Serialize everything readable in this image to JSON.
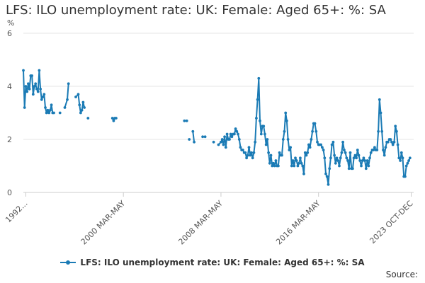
{
  "chart_data": {
    "type": "line",
    "title": "LFS: ILO unemployment rate: UK: Female: Aged 65+: %: SA",
    "ylabel": "%",
    "ylim": [
      0,
      6
    ],
    "yticks": [
      0,
      2,
      4,
      6
    ],
    "xlim": [
      1992.0,
      2024.0
    ],
    "xticks": [
      {
        "x": 1992.2,
        "label": "1992..."
      },
      {
        "x": 2000.2,
        "label": "2000 MAR-MAY"
      },
      {
        "x": 2008.2,
        "label": "2008 MAR-MAY"
      },
      {
        "x": 2016.2,
        "label": "2016 MAR-MAY"
      },
      {
        "x": 2023.8,
        "label": "2023 OCT-DEC"
      }
    ],
    "grid": true,
    "legend_position": "bottom",
    "color": "#1b7bb5",
    "series": [
      {
        "name": "LFS: ILO unemployment rate: UK: Female: Aged 65+: %: SA",
        "segments": [
          [
            [
              1992.0,
              4.6
            ],
            [
              1992.1,
              3.2
            ],
            [
              1992.2,
              4.0
            ],
            [
              1992.3,
              3.8
            ],
            [
              1992.4,
              4.1
            ],
            [
              1992.5,
              3.9
            ],
            [
              1992.6,
              4.4
            ],
            [
              1992.7,
              4.4
            ],
            [
              1992.8,
              3.7
            ],
            [
              1992.9,
              4.0
            ],
            [
              1993.0,
              4.1
            ],
            [
              1993.1,
              3.9
            ],
            [
              1993.2,
              3.8
            ],
            [
              1993.3,
              4.6
            ],
            [
              1993.4,
              3.9
            ],
            [
              1993.5,
              3.5
            ],
            [
              1993.6,
              3.6
            ],
            [
              1993.7,
              3.7
            ],
            [
              1993.8,
              3.2
            ],
            [
              1993.9,
              3.0
            ],
            [
              1994.0,
              3.1
            ],
            [
              1994.1,
              3.0
            ],
            [
              1994.2,
              3.1
            ],
            [
              1994.3,
              3.3
            ],
            [
              1994.4,
              3.0
            ],
            [
              1994.5,
              3.0
            ]
          ],
          [
            [
              1995.0,
              3.0
            ]
          ],
          [
            [
              1995.4,
              3.2
            ],
            [
              1995.6,
              3.5
            ],
            [
              1995.7,
              4.1
            ]
          ],
          [
            [
              1996.3,
              3.6
            ],
            [
              1996.5,
              3.7
            ],
            [
              1996.6,
              3.3
            ],
            [
              1996.7,
              3.0
            ],
            [
              1996.8,
              3.1
            ],
            [
              1996.9,
              3.4
            ],
            [
              1997.0,
              3.2
            ]
          ],
          [
            [
              1997.3,
              2.8
            ]
          ],
          [
            [
              1999.3,
              2.8
            ],
            [
              1999.4,
              2.7
            ],
            [
              1999.5,
              2.8
            ],
            [
              1999.6,
              2.8
            ]
          ],
          [
            [
              2005.2,
              2.7
            ],
            [
              2005.4,
              2.7
            ]
          ],
          [
            [
              2005.6,
              2.0
            ]
          ],
          [
            [
              2005.9,
              2.3
            ],
            [
              2006.0,
              1.9
            ]
          ],
          [
            [
              2006.7,
              2.1
            ],
            [
              2006.9,
              2.1
            ]
          ],
          [
            [
              2007.6,
              1.9
            ]
          ],
          [
            [
              2008.0,
              1.8
            ],
            [
              2008.2,
              1.9
            ],
            [
              2008.3,
              2.0
            ],
            [
              2008.4,
              1.8
            ],
            [
              2008.5,
              2.1
            ],
            [
              2008.6,
              1.7
            ],
            [
              2008.7,
              2.2
            ],
            [
              2008.8,
              2.0
            ],
            [
              2008.9,
              2.0
            ],
            [
              2009.0,
              2.2
            ],
            [
              2009.1,
              2.1
            ],
            [
              2009.2,
              2.2
            ],
            [
              2009.3,
              2.2
            ],
            [
              2009.4,
              2.4
            ],
            [
              2009.5,
              2.3
            ],
            [
              2009.6,
              2.2
            ],
            [
              2009.7,
              2.0
            ],
            [
              2009.8,
              1.7
            ],
            [
              2009.9,
              1.6
            ],
            [
              2010.0,
              1.6
            ],
            [
              2010.1,
              1.5
            ],
            [
              2010.2,
              1.5
            ],
            [
              2010.3,
              1.3
            ],
            [
              2010.4,
              1.4
            ],
            [
              2010.5,
              1.7
            ],
            [
              2010.6,
              1.4
            ],
            [
              2010.7,
              1.5
            ],
            [
              2010.8,
              1.3
            ],
            [
              2010.9,
              1.5
            ],
            [
              2011.0,
              1.9
            ],
            [
              2011.1,
              2.8
            ],
            [
              2011.2,
              3.5
            ],
            [
              2011.3,
              4.3
            ],
            [
              2011.4,
              2.7
            ],
            [
              2011.5,
              2.2
            ],
            [
              2011.6,
              2.5
            ],
            [
              2011.7,
              2.5
            ],
            [
              2011.8,
              2.2
            ],
            [
              2011.9,
              1.8
            ],
            [
              2012.0,
              2.0
            ],
            [
              2012.1,
              1.5
            ],
            [
              2012.2,
              1.1
            ],
            [
              2012.3,
              1.4
            ],
            [
              2012.4,
              1.0
            ],
            [
              2012.5,
              1.1
            ],
            [
              2012.6,
              1.0
            ],
            [
              2012.7,
              1.2
            ],
            [
              2012.8,
              1.0
            ],
            [
              2012.9,
              1.0
            ],
            [
              2013.0,
              1.5
            ],
            [
              2013.1,
              1.4
            ],
            [
              2013.2,
              1.4
            ],
            [
              2013.3,
              2.0
            ],
            [
              2013.4,
              2.3
            ],
            [
              2013.5,
              3.0
            ],
            [
              2013.6,
              2.7
            ],
            [
              2013.7,
              2.0
            ],
            [
              2013.8,
              1.6
            ],
            [
              2013.9,
              1.7
            ],
            [
              2014.0,
              1.0
            ],
            [
              2014.1,
              1.2
            ],
            [
              2014.2,
              1.0
            ],
            [
              2014.3,
              1.3
            ],
            [
              2014.4,
              1.2
            ],
            [
              2014.5,
              1.0
            ],
            [
              2014.6,
              1.1
            ],
            [
              2014.7,
              1.3
            ],
            [
              2014.8,
              1.1
            ],
            [
              2014.9,
              1.0
            ],
            [
              2015.0,
              0.7
            ],
            [
              2015.1,
              1.5
            ],
            [
              2015.2,
              1.4
            ],
            [
              2015.3,
              1.5
            ],
            [
              2015.4,
              1.8
            ],
            [
              2015.5,
              1.7
            ],
            [
              2015.6,
              2.0
            ],
            [
              2015.7,
              2.3
            ],
            [
              2015.8,
              2.6
            ],
            [
              2015.9,
              2.6
            ],
            [
              2016.0,
              2.3
            ],
            [
              2016.1,
              1.9
            ],
            [
              2016.2,
              1.8
            ],
            [
              2016.3,
              1.8
            ],
            [
              2016.4,
              1.8
            ],
            [
              2016.5,
              1.7
            ],
            [
              2016.6,
              1.6
            ],
            [
              2016.7,
              1.3
            ],
            [
              2016.8,
              0.7
            ],
            [
              2016.9,
              0.6
            ],
            [
              2017.0,
              0.3
            ],
            [
              2017.1,
              0.9
            ],
            [
              2017.2,
              1.3
            ],
            [
              2017.3,
              1.8
            ],
            [
              2017.4,
              1.9
            ],
            [
              2017.5,
              1.4
            ],
            [
              2017.6,
              1.1
            ],
            [
              2017.7,
              1.3
            ],
            [
              2017.8,
              1.2
            ],
            [
              2017.9,
              1.0
            ],
            [
              2018.0,
              1.3
            ],
            [
              2018.1,
              1.5
            ],
            [
              2018.2,
              1.9
            ],
            [
              2018.3,
              1.6
            ],
            [
              2018.4,
              1.5
            ],
            [
              2018.5,
              1.3
            ],
            [
              2018.6,
              1.2
            ],
            [
              2018.7,
              0.9
            ],
            [
              2018.8,
              1.5
            ],
            [
              2018.9,
              0.9
            ],
            [
              2019.0,
              0.9
            ],
            [
              2019.1,
              1.3
            ],
            [
              2019.2,
              1.4
            ],
            [
              2019.3,
              1.3
            ],
            [
              2019.4,
              1.6
            ],
            [
              2019.5,
              1.4
            ],
            [
              2019.6,
              1.2
            ],
            [
              2019.7,
              1.0
            ],
            [
              2019.8,
              1.2
            ],
            [
              2019.9,
              1.3
            ],
            [
              2020.0,
              1.2
            ],
            [
              2020.1,
              0.9
            ],
            [
              2020.2,
              1.2
            ],
            [
              2020.3,
              1.0
            ],
            [
              2020.4,
              1.3
            ],
            [
              2020.5,
              1.5
            ],
            [
              2020.6,
              1.6
            ],
            [
              2020.7,
              1.6
            ],
            [
              2020.8,
              1.7
            ],
            [
              2020.9,
              1.6
            ],
            [
              2021.0,
              1.6
            ],
            [
              2021.1,
              2.3
            ],
            [
              2021.2,
              3.5
            ],
            [
              2021.3,
              3.0
            ],
            [
              2021.4,
              2.3
            ],
            [
              2021.5,
              1.6
            ],
            [
              2021.6,
              1.4
            ],
            [
              2021.7,
              1.7
            ],
            [
              2021.8,
              1.9
            ],
            [
              2021.9,
              1.9
            ],
            [
              2022.0,
              2.0
            ],
            [
              2022.1,
              2.0
            ],
            [
              2022.2,
              1.9
            ],
            [
              2022.3,
              1.8
            ],
            [
              2022.4,
              1.9
            ],
            [
              2022.5,
              2.5
            ],
            [
              2022.6,
              2.3
            ],
            [
              2022.7,
              1.8
            ],
            [
              2022.8,
              1.3
            ],
            [
              2022.9,
              1.2
            ],
            [
              2023.0,
              1.5
            ],
            [
              2023.1,
              1.3
            ],
            [
              2023.2,
              0.6
            ],
            [
              2023.3,
              0.6
            ],
            [
              2023.4,
              1.0
            ],
            [
              2023.5,
              1.1
            ],
            [
              2023.6,
              1.2
            ],
            [
              2023.7,
              1.3
            ]
          ]
        ]
      }
    ],
    "source": "Source:"
  }
}
